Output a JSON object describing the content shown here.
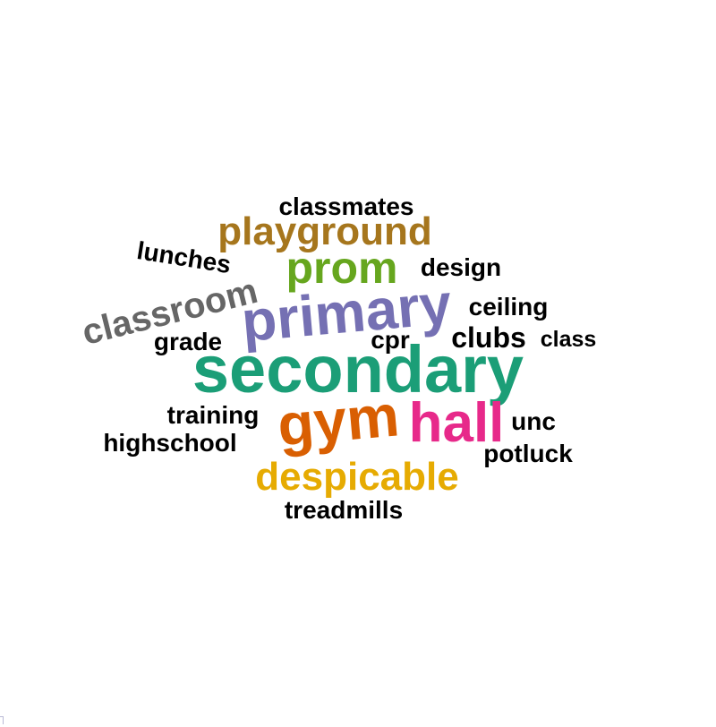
{
  "word_cloud": {
    "words": [
      {
        "text": "secondary",
        "color": "#1b9e77"
      },
      {
        "text": "primary",
        "color": "#7570b3"
      },
      {
        "text": "gym",
        "color": "#d95f02"
      },
      {
        "text": "hall",
        "color": "#e7298a"
      },
      {
        "text": "prom",
        "color": "#66a61e"
      },
      {
        "text": "despicable",
        "color": "#e6ab02"
      },
      {
        "text": "playground",
        "color": "#a6761d"
      },
      {
        "text": "classroom",
        "color": "#666666"
      },
      {
        "text": "classmates",
        "color": "#000000"
      },
      {
        "text": "lunches",
        "color": "#000000"
      },
      {
        "text": "design",
        "color": "#000000"
      },
      {
        "text": "ceiling",
        "color": "#000000"
      },
      {
        "text": "grade",
        "color": "#000000"
      },
      {
        "text": "cpr",
        "color": "#000000"
      },
      {
        "text": "clubs",
        "color": "#000000"
      },
      {
        "text": "class",
        "color": "#000000"
      },
      {
        "text": "training",
        "color": "#000000"
      },
      {
        "text": "unc",
        "color": "#000000"
      },
      {
        "text": "highschool",
        "color": "#000000"
      },
      {
        "text": "potluck",
        "color": "#000000"
      },
      {
        "text": "treadmills",
        "color": "#000000"
      }
    ]
  }
}
